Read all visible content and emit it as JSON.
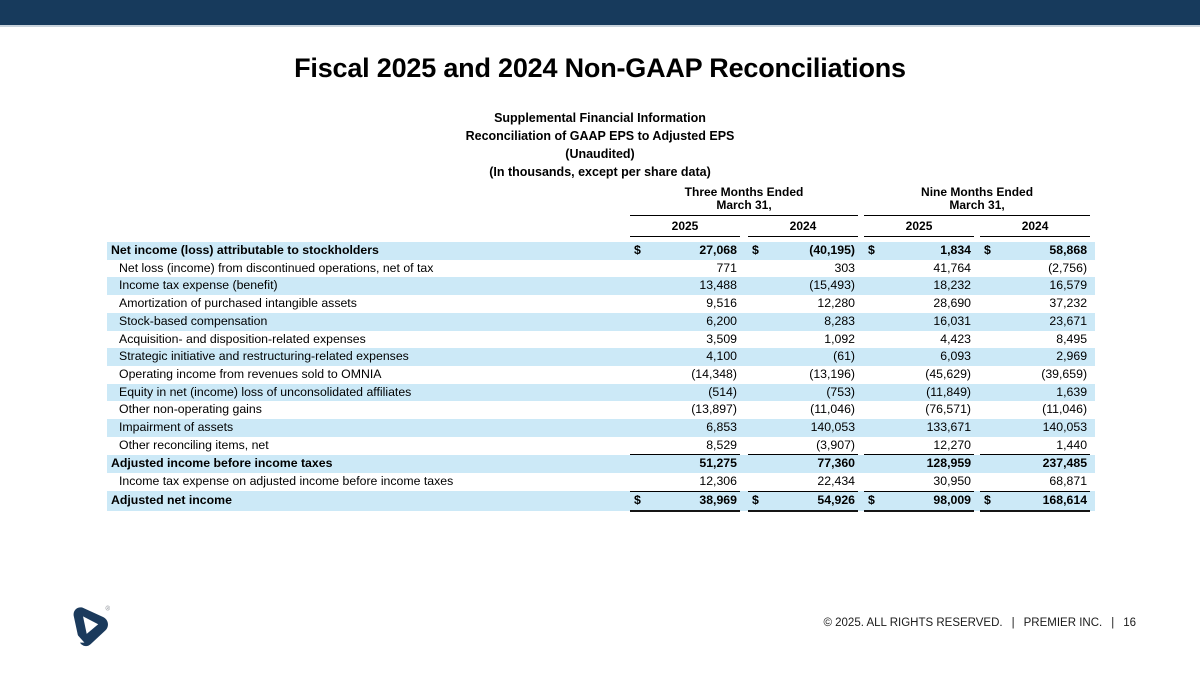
{
  "title": "Fiscal 2025 and 2024 Non-GAAP Reconciliations",
  "subtitle_lines": [
    "Supplemental Financial Information",
    "Reconciliation of GAAP EPS to Adjusted EPS",
    "(Unaudited)",
    "(In thousands, except per share data)"
  ],
  "colors": {
    "accent_bar": "#173a5c",
    "row_stripe": "#cce9f7",
    "logo": "#1b3a5c"
  },
  "table": {
    "col_groups": [
      {
        "line1": "Three Months Ended",
        "line2": "March 31,",
        "years": [
          "2025",
          "2024"
        ]
      },
      {
        "line1": "Nine Months Ended",
        "line2": "March 31,",
        "years": [
          "2025",
          "2024"
        ]
      }
    ],
    "rows": [
      {
        "label": "Net income (loss) attributable to stockholders",
        "bold": true,
        "indent": false,
        "dollar": true,
        "rule": "none",
        "values": [
          "27,068",
          "(40,195)",
          "1,834",
          "58,868"
        ]
      },
      {
        "label": "Net loss (income) from discontinued operations, net of tax",
        "bold": false,
        "indent": true,
        "dollar": false,
        "rule": "none",
        "values": [
          "771",
          "303",
          "41,764",
          "(2,756)"
        ]
      },
      {
        "label": "Income tax expense (benefit)",
        "bold": false,
        "indent": true,
        "dollar": false,
        "rule": "none",
        "values": [
          "13,488",
          "(15,493)",
          "18,232",
          "16,579"
        ]
      },
      {
        "label": "Amortization of purchased intangible assets",
        "bold": false,
        "indent": true,
        "dollar": false,
        "rule": "none",
        "values": [
          "9,516",
          "12,280",
          "28,690",
          "37,232"
        ]
      },
      {
        "label": "Stock-based compensation",
        "bold": false,
        "indent": true,
        "dollar": false,
        "rule": "none",
        "values": [
          "6,200",
          "8,283",
          "16,031",
          "23,671"
        ]
      },
      {
        "label": "Acquisition- and disposition-related expenses",
        "bold": false,
        "indent": true,
        "dollar": false,
        "rule": "none",
        "values": [
          "3,509",
          "1,092",
          "4,423",
          "8,495"
        ]
      },
      {
        "label": "Strategic initiative and restructuring-related expenses",
        "bold": false,
        "indent": true,
        "dollar": false,
        "rule": "none",
        "values": [
          "4,100",
          "(61)",
          "6,093",
          "2,969"
        ]
      },
      {
        "label": "Operating income from revenues sold to OMNIA",
        "bold": false,
        "indent": true,
        "dollar": false,
        "rule": "none",
        "values": [
          "(14,348)",
          "(13,196)",
          "(45,629)",
          "(39,659)"
        ]
      },
      {
        "label": "Equity in net (income) loss of unconsolidated affiliates",
        "bold": false,
        "indent": true,
        "dollar": false,
        "rule": "none",
        "values": [
          "(514)",
          "(753)",
          "(11,849)",
          "1,639"
        ]
      },
      {
        "label": "Other non-operating gains",
        "bold": false,
        "indent": true,
        "dollar": false,
        "rule": "none",
        "values": [
          "(13,897)",
          "(11,046)",
          "(76,571)",
          "(11,046)"
        ]
      },
      {
        "label": "Impairment of assets",
        "bold": false,
        "indent": true,
        "dollar": false,
        "rule": "none",
        "values": [
          "6,853",
          "140,053",
          "133,671",
          "140,053"
        ]
      },
      {
        "label": "Other reconciling items, net",
        "bold": false,
        "indent": true,
        "dollar": false,
        "rule": "single",
        "values": [
          "8,529",
          "(3,907)",
          "12,270",
          "1,440"
        ]
      },
      {
        "label": "Adjusted income before income taxes",
        "bold": true,
        "indent": false,
        "dollar": false,
        "rule": "none",
        "values": [
          "51,275",
          "77,360",
          "128,959",
          "237,485"
        ]
      },
      {
        "label": "Income tax expense on adjusted income before income taxes",
        "bold": false,
        "indent": true,
        "dollar": false,
        "rule": "single",
        "values": [
          "12,306",
          "22,434",
          "30,950",
          "68,871"
        ]
      },
      {
        "label": "Adjusted net income",
        "bold": true,
        "indent": false,
        "dollar": true,
        "rule": "total",
        "values": [
          "38,969",
          "54,926",
          "98,009",
          "168,614"
        ]
      }
    ]
  },
  "footer": {
    "copyright": "© 2025. ALL RIGHTS RESERVED.",
    "separator": "|",
    "company": "PREMIER INC.",
    "page": "16"
  },
  "logo": {
    "name": "premier-logo",
    "registered": "®"
  }
}
